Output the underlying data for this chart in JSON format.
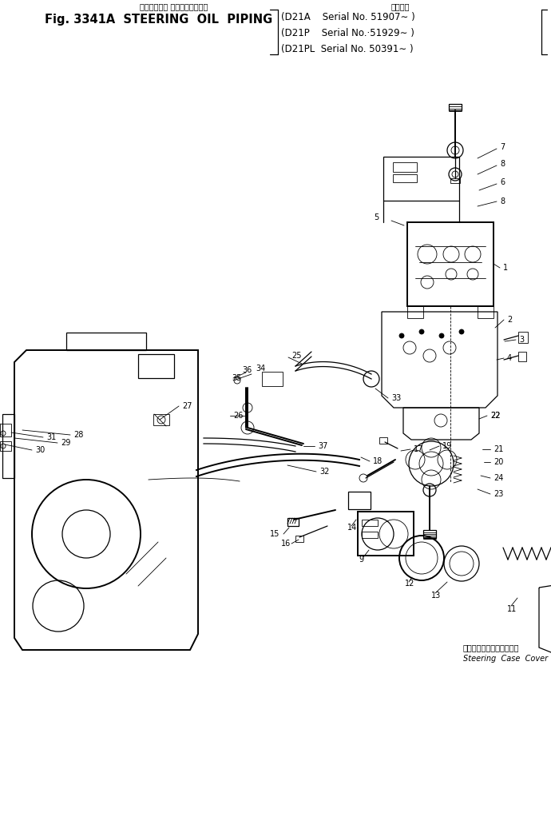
{
  "title_japanese": "ステアリング オイルパイピング",
  "title_english": "Fig. 3341A  STEERING  OIL  PIPING",
  "serial_line1": "(D21A    Serial No. 51907∼ )",
  "serial_line2": "(D21P    Serial No.·51929∼ )",
  "serial_line3": "(D21PL  Serial No. 50391∼ )",
  "used_label": "適用機種",
  "bottom_label_japanese": "ステアリングケースカバー",
  "bottom_label_english": "Steering  Case  Cover",
  "bg_color": "#ffffff",
  "lc": "#000000",
  "figsize": [
    6.9,
    10.22
  ],
  "dpi": 100
}
